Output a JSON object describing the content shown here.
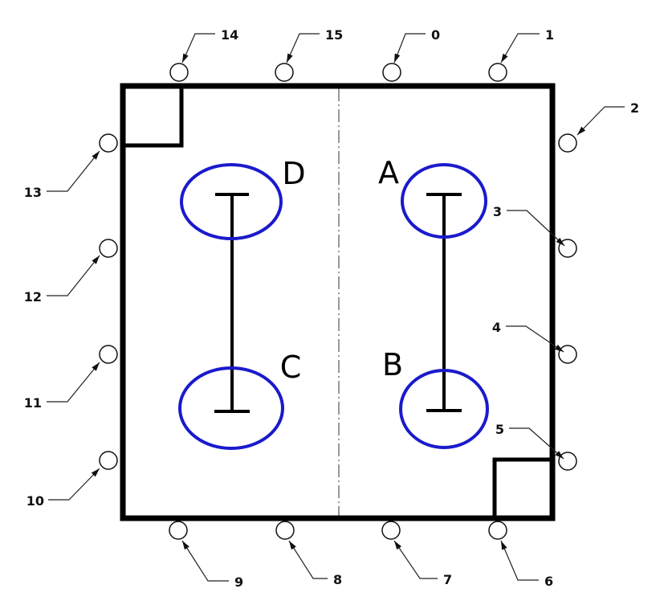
{
  "diagram": {
    "colors": {
      "frame": "#000000",
      "wheel": "#1a1acc",
      "leader": "#222222",
      "centerline": "#555555"
    },
    "wheels": [
      {
        "id": "wheel-a",
        "label": "A"
      },
      {
        "id": "wheel-b",
        "label": "B"
      },
      {
        "id": "wheel-c",
        "label": "C"
      },
      {
        "id": "wheel-d",
        "label": "D"
      }
    ],
    "perimeter_points": [
      {
        "label": "0"
      },
      {
        "label": "1"
      },
      {
        "label": "2"
      },
      {
        "label": "3"
      },
      {
        "label": "4"
      },
      {
        "label": "5"
      },
      {
        "label": "6"
      },
      {
        "label": "7"
      },
      {
        "label": "8"
      },
      {
        "label": "9"
      },
      {
        "label": "10"
      },
      {
        "label": "11"
      },
      {
        "label": "12"
      },
      {
        "label": "13"
      },
      {
        "label": "14"
      },
      {
        "label": "15"
      }
    ]
  }
}
